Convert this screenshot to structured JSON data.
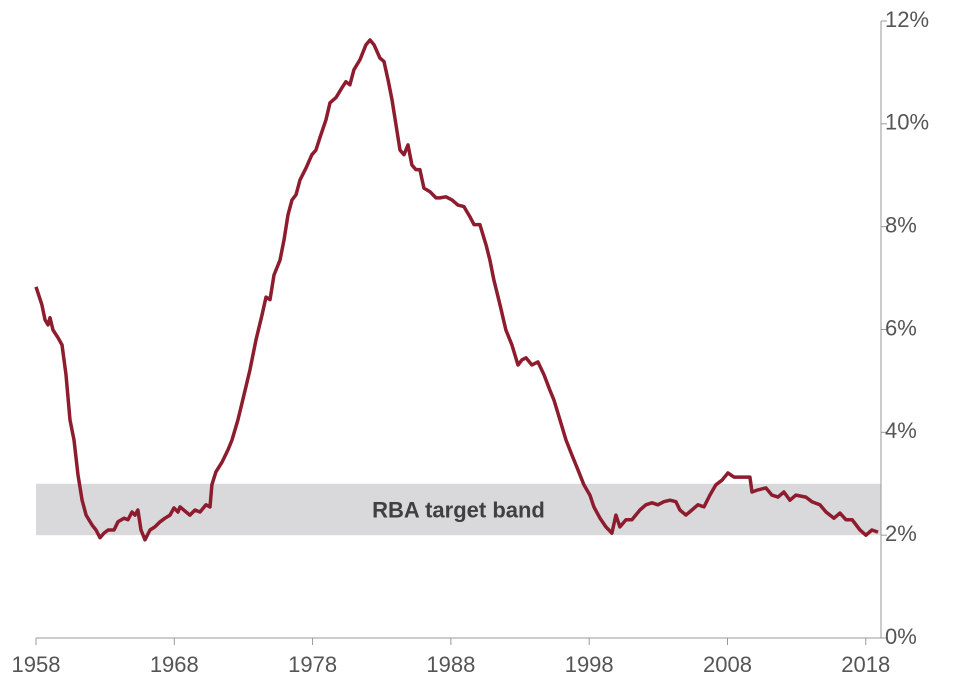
{
  "chart_data": {
    "type": "line",
    "band": {
      "from": 2,
      "to": 3,
      "label": "RBA target band",
      "color": "#d9d9db"
    },
    "xlim": [
      1958,
      2019.1
    ],
    "xticks": [
      1958,
      1968,
      1978,
      1988,
      1998,
      2008,
      2018
    ],
    "ylim": [
      0,
      12
    ],
    "yticks": [
      {
        "value": 0,
        "label": "0%"
      },
      {
        "value": 2,
        "label": "2%"
      },
      {
        "value": 4,
        "label": "4%"
      },
      {
        "value": 6,
        "label": "6%"
      },
      {
        "value": 8,
        "label": "8%"
      },
      {
        "value": 10,
        "label": "10%"
      },
      {
        "value": 12,
        "label": "12%"
      }
    ],
    "series": [
      {
        "color": "#8c1c2e",
        "x": [
          1958.0,
          1958.43,
          1958.65,
          1958.87,
          1959.01,
          1959.23,
          1959.59,
          1959.88,
          1960.17,
          1960.46,
          1960.75,
          1961.04,
          1961.33,
          1961.62,
          1962.05,
          1962.34,
          1962.63,
          1962.92,
          1963.21,
          1963.64,
          1963.93,
          1964.36,
          1964.65,
          1964.94,
          1965.16,
          1965.37,
          1965.59,
          1965.88,
          1966.24,
          1966.6,
          1966.97,
          1967.33,
          1967.69,
          1967.98,
          1968.27,
          1968.41,
          1968.85,
          1969.13,
          1969.5,
          1969.86,
          1970.29,
          1970.58,
          1970.72,
          1971.01,
          1971.45,
          1971.88,
          1972.17,
          1972.6,
          1973.04,
          1973.47,
          1973.91,
          1974.34,
          1974.63,
          1974.92,
          1975.21,
          1975.64,
          1975.93,
          1976.22,
          1976.51,
          1976.8,
          1977.09,
          1977.52,
          1977.95,
          1978.24,
          1978.53,
          1978.97,
          1979.26,
          1979.69,
          1980.12,
          1980.41,
          1980.7,
          1980.99,
          1981.43,
          1981.86,
          1982.15,
          1982.44,
          1982.87,
          1983.16,
          1983.45,
          1983.74,
          1984.03,
          1984.32,
          1984.61,
          1984.9,
          1985.18,
          1985.47,
          1985.76,
          1986.05,
          1986.49,
          1986.92,
          1987.21,
          1987.64,
          1988.08,
          1988.51,
          1988.94,
          1989.38,
          1989.67,
          1990.1,
          1990.54,
          1990.82,
          1991.11,
          1991.55,
          1991.98,
          1992.41,
          1992.85,
          1993.14,
          1993.43,
          1993.86,
          1994.29,
          1994.73,
          1995.16,
          1995.45,
          1995.89,
          1996.32,
          1996.75,
          1997.19,
          1997.62,
          1998.05,
          1998.34,
          1998.78,
          1999.21,
          1999.64,
          1999.93,
          2000.22,
          2000.66,
          2001.09,
          2001.67,
          2002.1,
          2002.54,
          2002.97,
          2003.4,
          2003.84,
          2004.27,
          2004.56,
          2004.99,
          2005.43,
          2005.86,
          2006.3,
          2006.73,
          2007.16,
          2007.6,
          2008.03,
          2008.47,
          2008.9,
          2009.62,
          2009.77,
          2010.2,
          2010.78,
          2011.21,
          2011.65,
          2012.08,
          2012.51,
          2012.95,
          2013.67,
          2014.1,
          2014.68,
          2015.12,
          2015.7,
          2016.13,
          2016.56,
          2017.01,
          2017.58,
          2018.01,
          2018.44,
          2018.88
        ],
        "values": [
          6.83,
          6.48,
          6.19,
          6.09,
          6.23,
          5.99,
          5.84,
          5.7,
          5.12,
          4.24,
          3.85,
          3.17,
          2.68,
          2.39,
          2.2,
          2.1,
          1.95,
          2.04,
          2.1,
          2.1,
          2.26,
          2.33,
          2.3,
          2.45,
          2.39,
          2.49,
          2.1,
          1.91,
          2.1,
          2.16,
          2.26,
          2.33,
          2.39,
          2.53,
          2.45,
          2.55,
          2.45,
          2.39,
          2.49,
          2.45,
          2.59,
          2.55,
          2.98,
          3.23,
          3.42,
          3.66,
          3.85,
          4.24,
          4.73,
          5.21,
          5.8,
          6.28,
          6.63,
          6.58,
          7.06,
          7.35,
          7.74,
          8.23,
          8.52,
          8.62,
          8.91,
          9.14,
          9.4,
          9.49,
          9.73,
          10.08,
          10.41,
          10.51,
          10.7,
          10.82,
          10.76,
          11.05,
          11.25,
          11.54,
          11.63,
          11.54,
          11.28,
          11.21,
          10.86,
          10.47,
          9.98,
          9.49,
          9.4,
          9.59,
          9.2,
          9.11,
          9.11,
          8.75,
          8.68,
          8.56,
          8.56,
          8.58,
          8.52,
          8.42,
          8.39,
          8.19,
          8.04,
          8.04,
          7.65,
          7.35,
          6.96,
          6.48,
          5.99,
          5.7,
          5.31,
          5.41,
          5.45,
          5.31,
          5.37,
          5.12,
          4.82,
          4.63,
          4.24,
          3.85,
          3.56,
          3.27,
          2.98,
          2.78,
          2.55,
          2.33,
          2.16,
          2.04,
          2.39,
          2.16,
          2.3,
          2.3,
          2.49,
          2.59,
          2.63,
          2.59,
          2.65,
          2.68,
          2.65,
          2.49,
          2.39,
          2.49,
          2.59,
          2.55,
          2.78,
          2.98,
          3.07,
          3.21,
          3.13,
          3.13,
          3.13,
          2.84,
          2.88,
          2.92,
          2.78,
          2.74,
          2.84,
          2.68,
          2.78,
          2.74,
          2.65,
          2.59,
          2.45,
          2.33,
          2.43,
          2.3,
          2.3,
          2.1,
          2.0,
          2.1,
          2.06
        ]
      }
    ]
  }
}
